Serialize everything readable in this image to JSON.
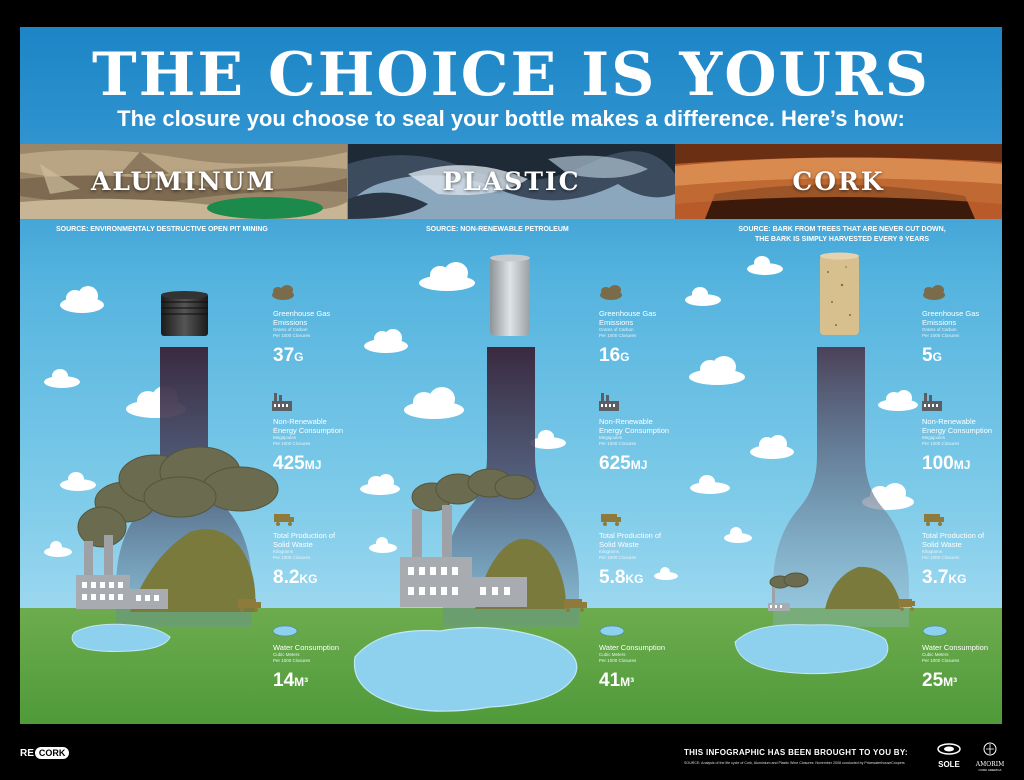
{
  "title": "THE CHOICE IS YOURS",
  "subtitle": "The closure you choose to seal your bottle makes a difference. Here’s how:",
  "materials": [
    {
      "name": "ALUMINUM",
      "source": "SOURCE: ENVIRONMENTALY DESTRUCTIVE OPEN PIT MINING",
      "source2": ""
    },
    {
      "name": "PLASTIC",
      "source": "SOURCE: NON-RENEWABLE PETROLEUM",
      "source2": ""
    },
    {
      "name": "CORK",
      "source": "SOURCE: BARK FROM TREES THAT ARE NEVER CUT DOWN,",
      "source2": "THE BARK IS SIMPLY HARVESTED EVERY 9 YEARS"
    }
  ],
  "metric_labels": {
    "ghg": {
      "line1": "Greenhouse Gas",
      "line2": "Emissions",
      "note1": "Grams of Carbon",
      "note2": "Per 1000 Closures",
      "icon": "cloud-icon"
    },
    "energy": {
      "line1": "Non-Renewable",
      "line2": "Energy Consumption",
      "note1": "Megajoules",
      "note2": "Per 1000 Closures",
      "icon": "factory-icon"
    },
    "waste": {
      "line1": "Total Production of",
      "line2": "Solid Waste",
      "note1": "Kilograms",
      "note2": "Per 1000 Closures",
      "icon": "dump-truck-icon"
    },
    "water": {
      "line1": "Water Consumption",
      "line2": "",
      "note1": "Cubic Meters",
      "note2": "Per 1000 Closures",
      "icon": "puddle-icon"
    }
  },
  "stats": [
    {
      "ghg": {
        "num": "37",
        "unit": "G"
      },
      "energy": {
        "num": "425",
        "unit": "MJ"
      },
      "waste": {
        "num": "8.2",
        "unit": "KG"
      },
      "water": {
        "num": "14",
        "unit": "M³"
      }
    },
    {
      "ghg": {
        "num": "16",
        "unit": "G"
      },
      "energy": {
        "num": "625",
        "unit": "MJ"
      },
      "waste": {
        "num": "5.8",
        "unit": "KG"
      },
      "water": {
        "num": "41",
        "unit": "M³"
      }
    },
    {
      "ghg": {
        "num": "5",
        "unit": "G"
      },
      "energy": {
        "num": "100",
        "unit": "MJ"
      },
      "waste": {
        "num": "3.7",
        "unit": "KG"
      },
      "water": {
        "num": "25",
        "unit": "M³"
      }
    }
  ],
  "footer": {
    "logo_re": "RE",
    "logo_cork": "CORK",
    "credit": "THIS INFOGRAPHIC HAS BEEN BROUGHT TO YOU BY:",
    "source_note": "SOURCE: Analysis of the life cycle of Cork, Aluminium and Plastic Wine Closures. November 2008 conducted by PricewaterhouseCoopers",
    "sponsor1": "SOLE",
    "sponsor2": "AMORIM",
    "sponsor2_sub": "CORK AMERICA"
  },
  "colors": {
    "sky_top": "#1d85c6",
    "sky_bottom": "#9bd7ef",
    "ground": "#5fa544",
    "smoke": "#6b6b4f",
    "bottle": "#3a2a3f",
    "water": "#8dd1ee"
  }
}
